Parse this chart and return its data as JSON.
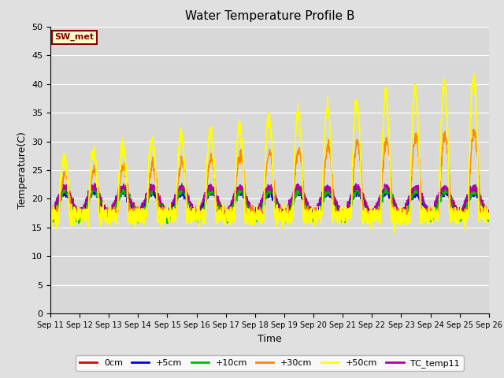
{
  "title": "Water Temperature Profile B",
  "xlabel": "Time",
  "ylabel": "Temperature(C)",
  "annotation": "SW_met",
  "ylim": [
    0,
    50
  ],
  "yticks": [
    0,
    5,
    10,
    15,
    20,
    25,
    30,
    35,
    40,
    45,
    50
  ],
  "xtick_labels": [
    "Sep 11",
    "Sep 12",
    "Sep 13",
    "Sep 14",
    "Sep 15",
    "Sep 16",
    "Sep 17",
    "Sep 18",
    "Sep 19",
    "Sep 20",
    "Sep 21",
    "Sep 22",
    "Sep 23",
    "Sep 24",
    "Sep 25",
    "Sep 26"
  ],
  "series": {
    "0cm": {
      "color": "#dd0000",
      "lw": 1.0
    },
    "+5cm": {
      "color": "#0000dd",
      "lw": 1.0
    },
    "+10cm": {
      "color": "#00bb00",
      "lw": 1.0
    },
    "+30cm": {
      "color": "#ff8800",
      "lw": 1.0
    },
    "+50cm": {
      "color": "#ffff00",
      "lw": 1.2
    },
    "TC_temp11": {
      "color": "#aa00aa",
      "lw": 1.0
    }
  },
  "bg_color": "#e0e0e0",
  "plot_bg_color": "#d8d8d8",
  "figsize": [
    6.4,
    4.8
  ],
  "dpi": 100
}
